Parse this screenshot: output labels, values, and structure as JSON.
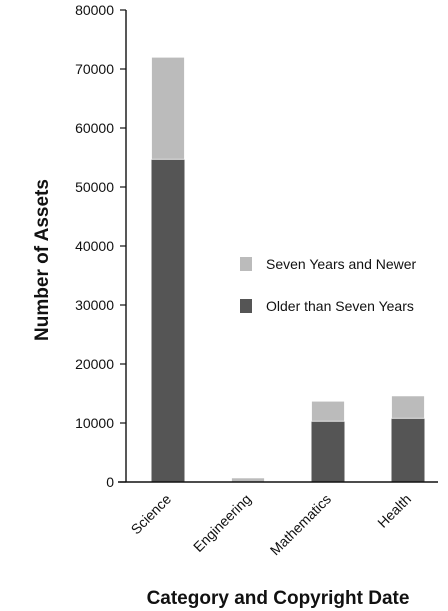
{
  "chart_data": {
    "type": "bar",
    "stacked": true,
    "categories": [
      "Science",
      "Engineering",
      "Mathematics",
      "Health"
    ],
    "series": [
      {
        "name": "Older than Seven Years",
        "values": [
          54700,
          0,
          10300,
          10800
        ],
        "color": "#555555"
      },
      {
        "name": "Seven Years and Newer",
        "values": [
          17300,
          700,
          3400,
          3800
        ],
        "color": "#bbbbbb"
      }
    ],
    "title": "",
    "xlabel": "Category and Copyright Date",
    "ylabel": "Number of Assets",
    "ylim": [
      0,
      80000
    ],
    "yticks": [
      0,
      10000,
      20000,
      30000,
      40000,
      50000,
      60000,
      70000,
      80000
    ],
    "grid": false,
    "legend": {
      "placement": "right-middle",
      "entries": [
        "Seven Years and Newer",
        "Older than Seven Years"
      ]
    }
  }
}
